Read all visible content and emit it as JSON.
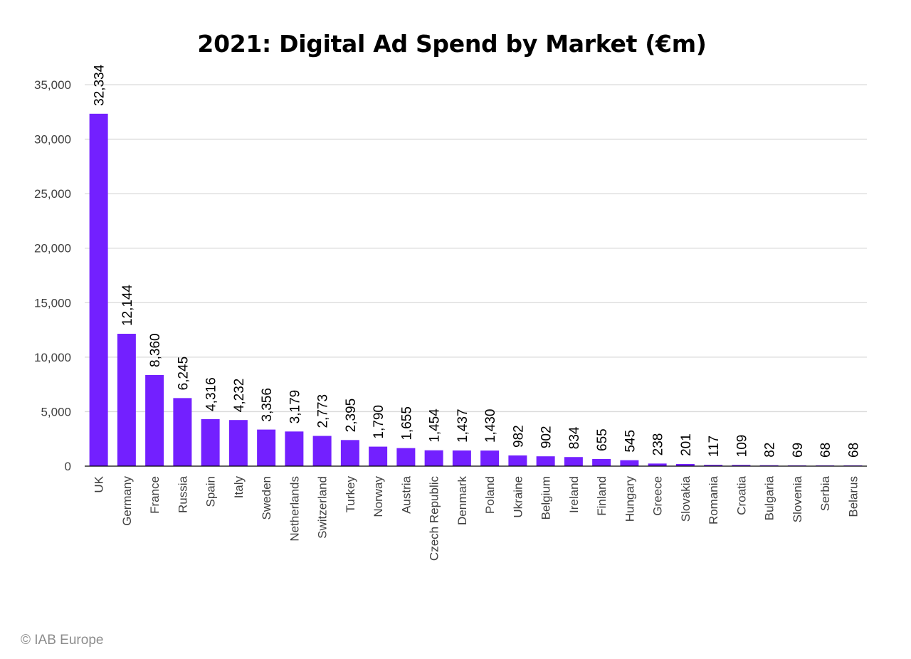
{
  "chart_data": {
    "type": "bar",
    "title": "2021: Digital Ad Spend by Market (€m)",
    "xlabel": "",
    "ylabel": "",
    "ylim": [
      0,
      35000
    ],
    "yticks": [
      0,
      5000,
      10000,
      15000,
      20000,
      25000,
      30000,
      35000
    ],
    "ytick_labels": [
      "0",
      "5,000",
      "10,000",
      "15,000",
      "20,000",
      "25,000",
      "30,000",
      "35,000"
    ],
    "grid": true,
    "legend": "none",
    "bar_color": "#7320FF",
    "categories": [
      "UK",
      "Germany",
      "France",
      "Russia",
      "Spain",
      "Italy",
      "Sweden",
      "Netherlands",
      "Switzerland",
      "Turkey",
      "Norway",
      "Austria",
      "Czech Republic",
      "Denmark",
      "Poland",
      "Ukraine",
      "Belgium",
      "Ireland",
      "Finland",
      "Hungary",
      "Greece",
      "Slovakia",
      "Romania",
      "Croatia",
      "Bulgaria",
      "Slovenia",
      "Serbia",
      "Belarus"
    ],
    "values": [
      32334,
      12144,
      8360,
      6245,
      4316,
      4232,
      3356,
      3179,
      2773,
      2395,
      1790,
      1655,
      1454,
      1437,
      1430,
      982,
      902,
      834,
      655,
      545,
      238,
      201,
      117,
      109,
      82,
      69,
      68,
      68
    ],
    "data_labels": [
      "32,334",
      "12,144",
      "8,360",
      "6,245",
      "4,316",
      "4,232",
      "3,356",
      "3,179",
      "2,773",
      "2,395",
      "1,790",
      "1,655",
      "1,454",
      "1,437",
      "1,430",
      "982",
      "902",
      "834",
      "655",
      "545",
      "238",
      "201",
      "117",
      "109",
      "82",
      "69",
      "68",
      "68"
    ]
  },
  "footer": {
    "copyright": "© IAB Europe"
  }
}
